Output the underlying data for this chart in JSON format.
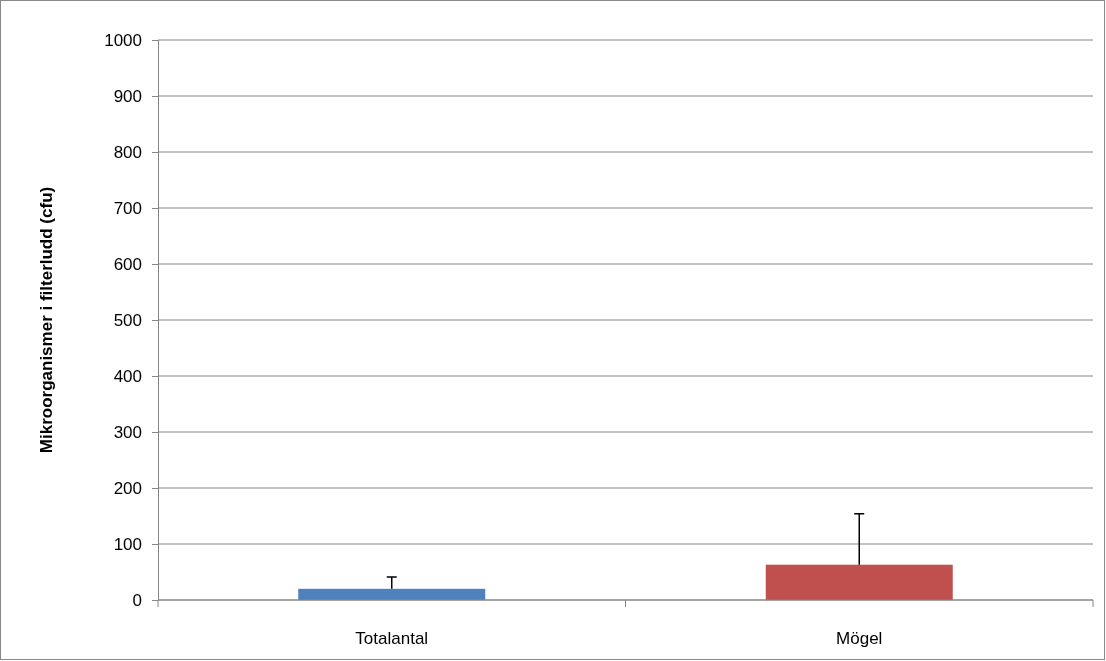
{
  "chart_data": {
    "type": "bar",
    "ylabel": "Mikroorganismer i filterludd (cfu)",
    "categories": [
      "Totalantal",
      "Mögel"
    ],
    "values": [
      20,
      63
    ],
    "colors": [
      "#4f81bd",
      "#c0504d"
    ],
    "errors": [
      [
        20,
        41
      ],
      [
        63,
        154
      ]
    ],
    "ylim": [
      0,
      1000
    ],
    "yticks": [
      0,
      100,
      200,
      300,
      400,
      500,
      600,
      700,
      800,
      900,
      1000
    ],
    "grid": "y"
  }
}
